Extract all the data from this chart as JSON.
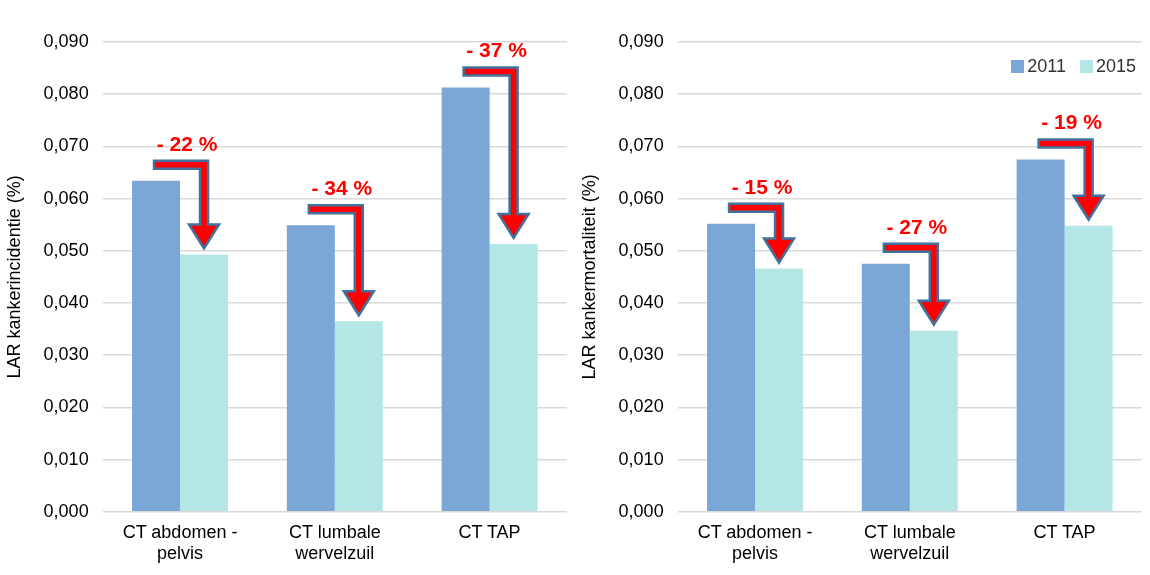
{
  "chart_data": [
    {
      "type": "bar",
      "ylabel": "LAR kankerincidentie (%)",
      "categories": [
        "CT abdomen - pelvis",
        "CT lumbale wervelzuil",
        "CT TAP"
      ],
      "series": [
        {
          "color": "#7ba7d6",
          "values": [
            0.0634,
            0.0549,
            0.0813
          ]
        },
        {
          "color": "#b5e6e6",
          "values": [
            0.0493,
            0.0365,
            0.0513
          ]
        }
      ],
      "ylim": [
        0,
        0.09
      ],
      "yticks": [
        {
          "value": 0,
          "label": "0,000"
        },
        {
          "value": 0.01,
          "label": "0,010"
        },
        {
          "value": 0.02,
          "label": "0,020"
        },
        {
          "value": 0.03,
          "label": "0,030"
        },
        {
          "value": 0.04,
          "label": "0,040"
        },
        {
          "value": 0.05,
          "label": "0,050"
        },
        {
          "value": 0.06,
          "label": "0,060"
        },
        {
          "value": 0.07,
          "label": "0,070"
        },
        {
          "value": 0.08,
          "label": "0,080"
        },
        {
          "value": 0.09,
          "label": "0,090"
        }
      ],
      "grid": "y",
      "legend": false,
      "annotations": [
        {
          "text": "- 22 %",
          "x": "CT abdomen - pelvis",
          "y": 0.0634
        },
        {
          "text": "- 34 %",
          "x": "CT lumbale wervelzuil",
          "y": 0.0549
        },
        {
          "text": "- 37 %",
          "x": "CT TAP",
          "y": 0.0813
        }
      ]
    },
    {
      "type": "bar",
      "ylabel": "LAR kankermortaliteit (%)",
      "categories": [
        "CT abdomen - pelvis",
        "CT lumbale wervelzuil",
        "CT TAP"
      ],
      "series": [
        {
          "name": "2011",
          "color": "#7ba7d6",
          "values": [
            0.0552,
            0.0475,
            0.0675
          ]
        },
        {
          "name": "2015",
          "color": "#b5e6e6",
          "values": [
            0.0466,
            0.0347,
            0.0548
          ]
        }
      ],
      "ylim": [
        0,
        0.09
      ],
      "yticks": [
        {
          "value": 0,
          "label": "0,000"
        },
        {
          "value": 0.01,
          "label": "0,010"
        },
        {
          "value": 0.02,
          "label": "0,020"
        },
        {
          "value": 0.03,
          "label": "0,030"
        },
        {
          "value": 0.04,
          "label": "0,040"
        },
        {
          "value": 0.05,
          "label": "0,050"
        },
        {
          "value": 0.06,
          "label": "0,060"
        },
        {
          "value": 0.07,
          "label": "0,070"
        },
        {
          "value": 0.08,
          "label": "0,080"
        },
        {
          "value": 0.09,
          "label": "0,090"
        }
      ],
      "grid": "y",
      "legend": "top right",
      "annotations": [
        {
          "text": "- 15 %",
          "x": "CT abdomen - pelvis",
          "y": 0.0552
        },
        {
          "text": "- 27 %",
          "x": "CT lumbale wervelzuil",
          "y": 0.0475
        },
        {
          "text": "- 19 %",
          "x": "CT TAP",
          "y": 0.0675
        }
      ]
    }
  ]
}
